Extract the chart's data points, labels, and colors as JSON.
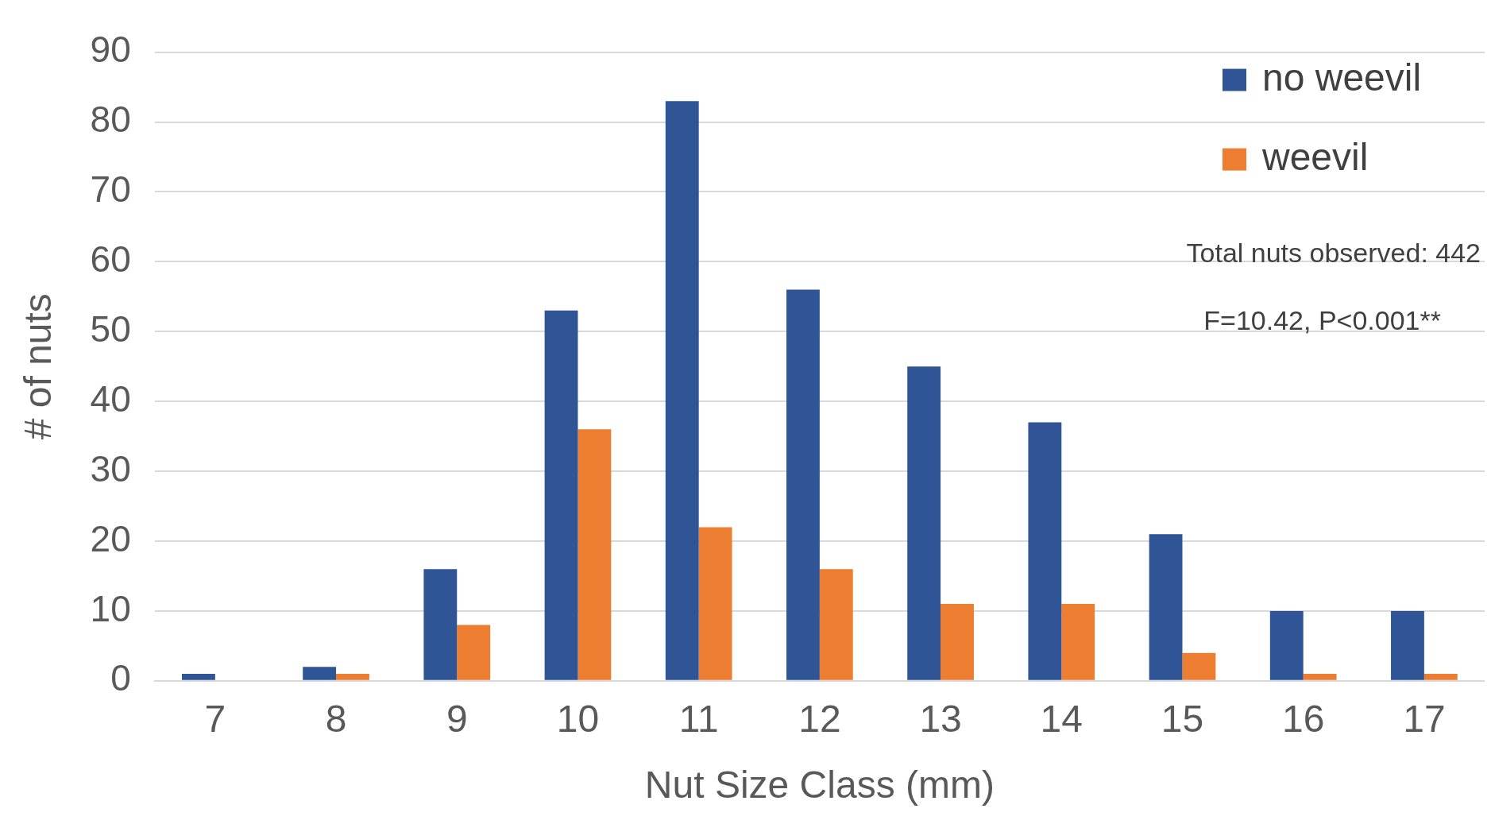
{
  "chart_data": {
    "type": "bar",
    "xlabel": "Nut Size Class (mm)",
    "ylabel": "# of nuts",
    "categories": [
      "7",
      "8",
      "9",
      "10",
      "11",
      "12",
      "13",
      "14",
      "15",
      "16",
      "17"
    ],
    "series": [
      {
        "name": "no weevil",
        "color": "#2f5597",
        "values": [
          1,
          2,
          16,
          53,
          83,
          56,
          45,
          37,
          21,
          10,
          10
        ]
      },
      {
        "name": "weevil",
        "color": "#ed7d31",
        "values": [
          0,
          1,
          8,
          36,
          22,
          16,
          11,
          11,
          4,
          1,
          1
        ]
      }
    ],
    "ylim": [
      0,
      90
    ],
    "yticks": [
      0,
      10,
      20,
      30,
      40,
      50,
      60,
      70,
      80,
      90
    ],
    "grid": "y",
    "legend": "top right",
    "annotations": [
      "Total nuts observed: 442",
      "F=10.42, P<0.001**"
    ]
  }
}
